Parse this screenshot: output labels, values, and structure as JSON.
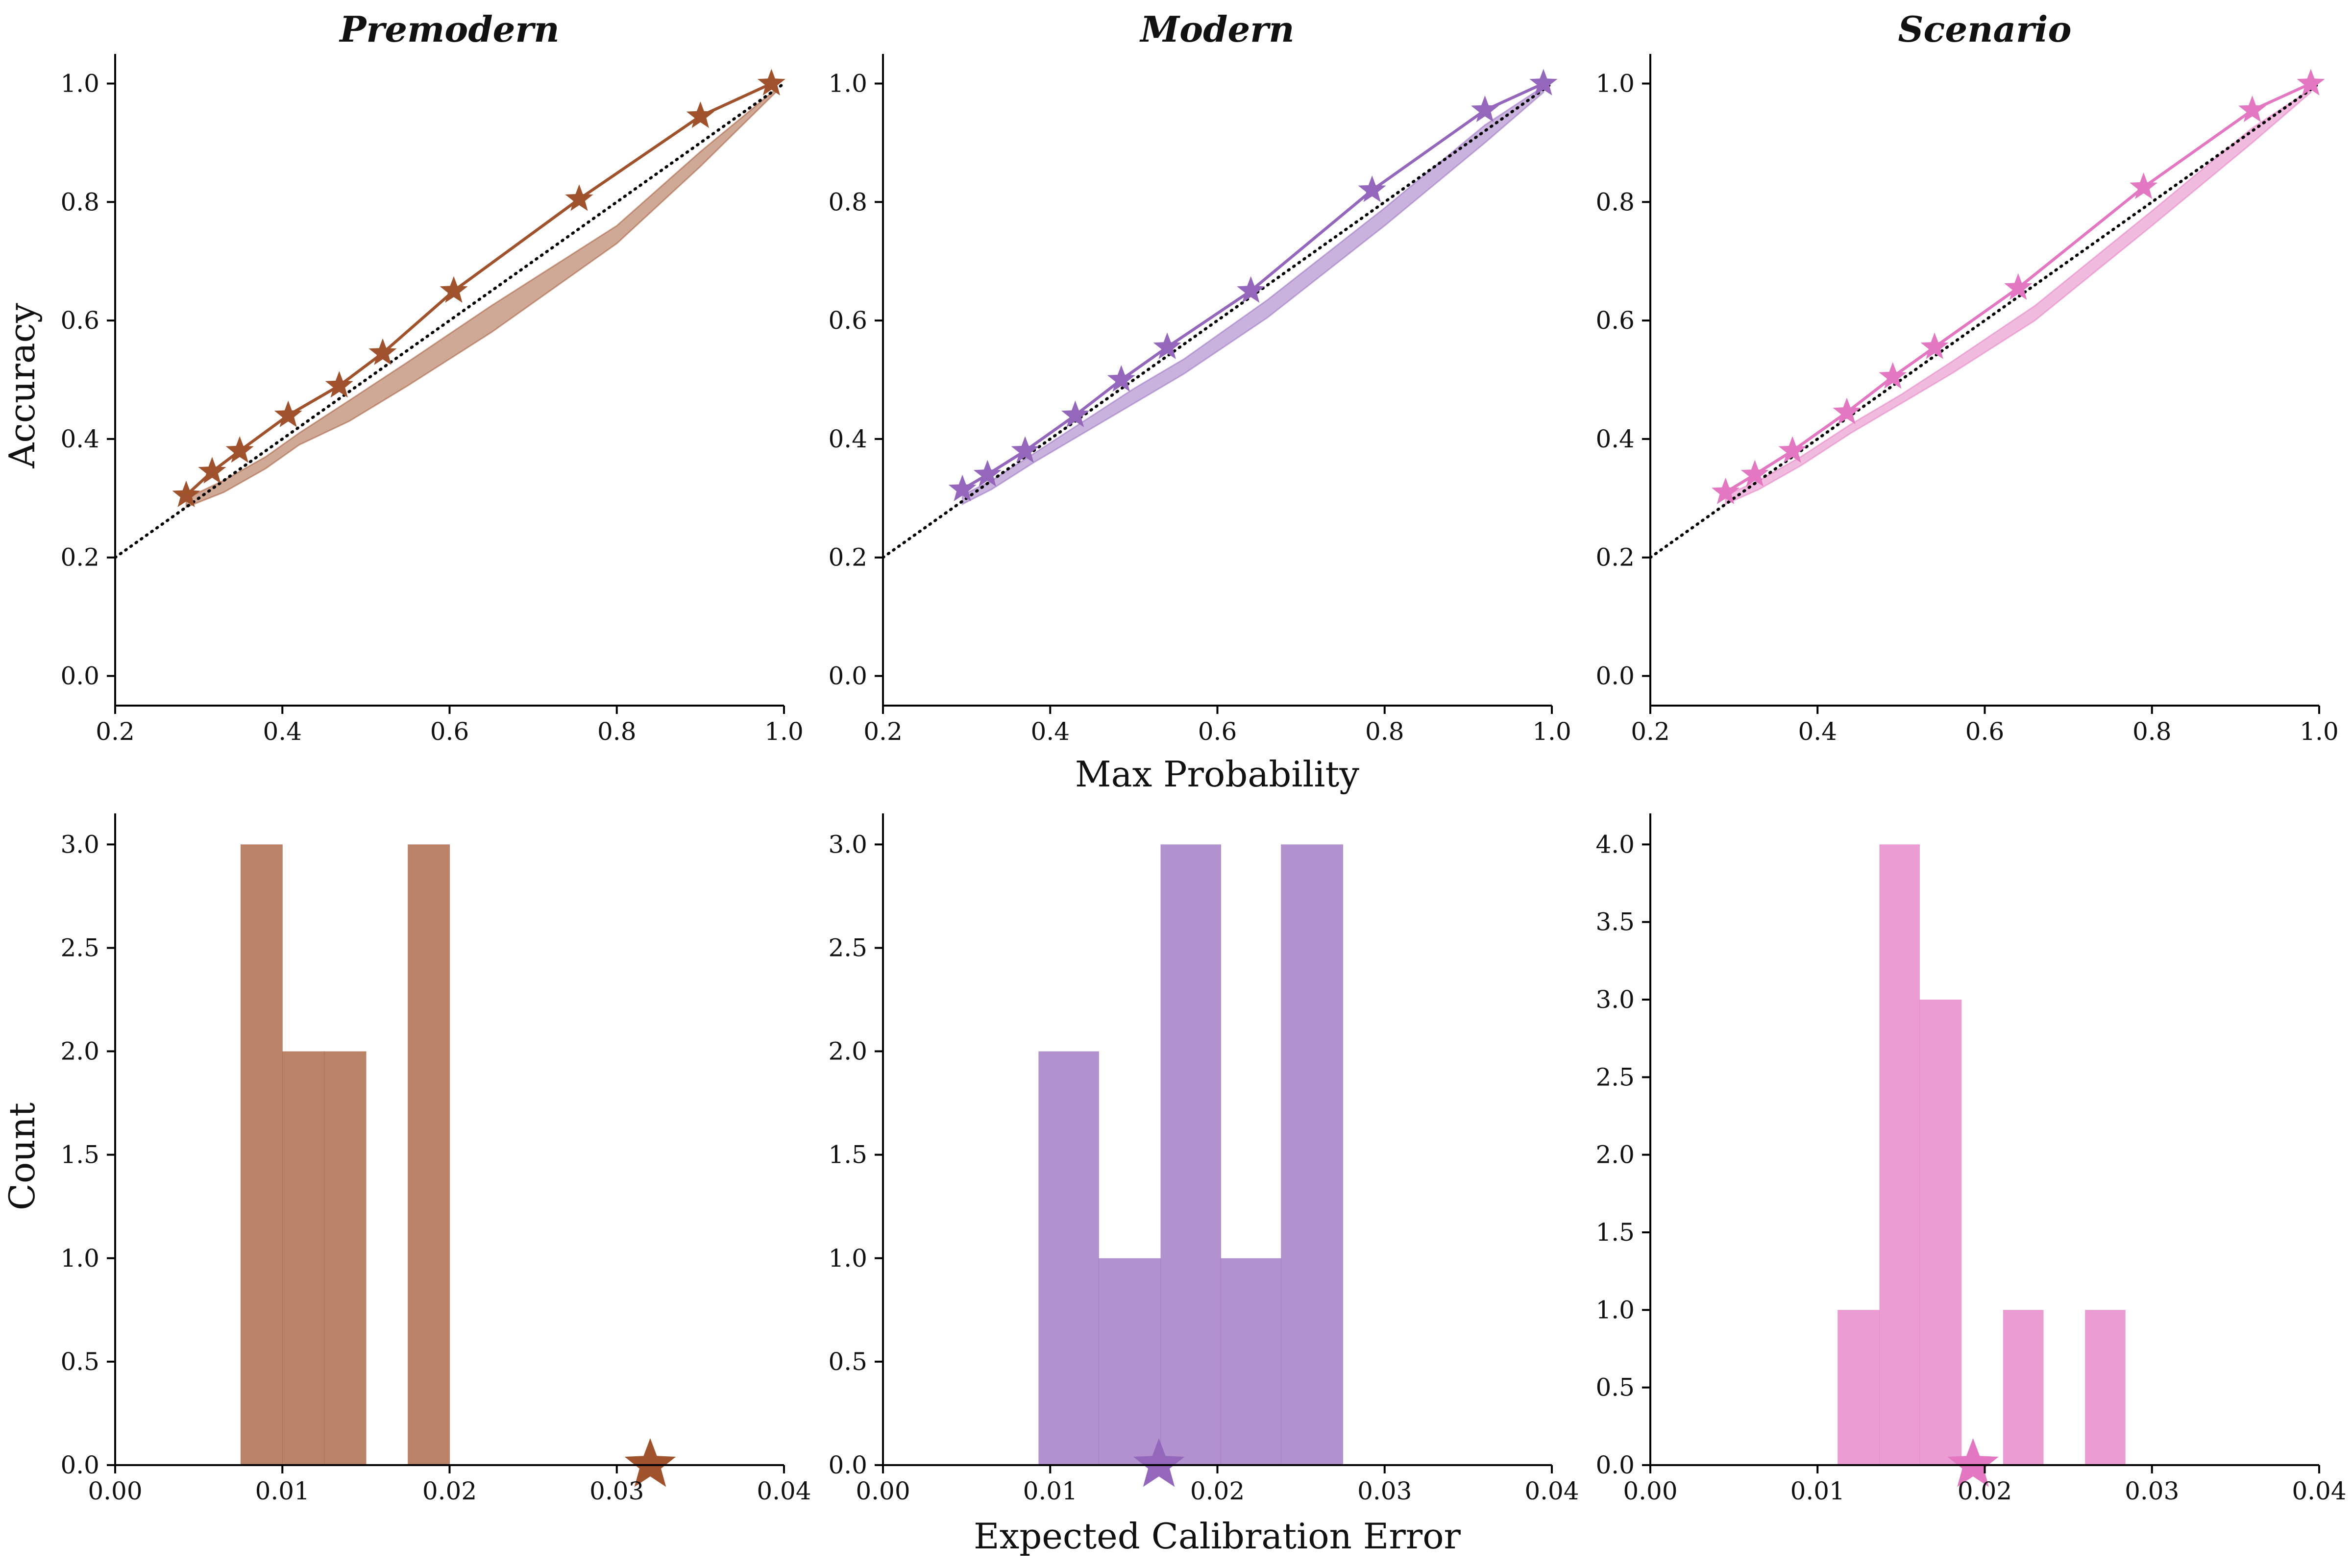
{
  "figure": {
    "ylabel_top": "Accuracy",
    "xlabel_top": "Max Probability",
    "ylabel_bottom": "Count",
    "xlabel_bottom": "Expected Calibration Error"
  },
  "chart_data": [
    {
      "panel": "top-left",
      "type": "line",
      "title": "Premodern",
      "color": "#a0522d",
      "xlim": [
        0.2,
        1.0
      ],
      "ylim": [
        -0.05,
        1.05
      ],
      "xticks": [
        "0.2",
        "0.4",
        "0.6",
        "0.8",
        "1.0"
      ],
      "yticks": [
        "0.0",
        "0.2",
        "0.4",
        "0.6",
        "0.8",
        "1.0"
      ],
      "grid": false,
      "diagonal": true,
      "series": [
        {
          "marker": "star",
          "x": [
            0.285,
            0.316,
            0.349,
            0.407,
            0.468,
            0.52,
            0.605,
            0.755,
            0.9,
            0.985
          ],
          "y": [
            0.305,
            0.345,
            0.38,
            0.44,
            0.49,
            0.545,
            0.65,
            0.805,
            0.945,
            1.0
          ]
        }
      ],
      "band": {
        "x": [
          0.285,
          0.33,
          0.38,
          0.42,
          0.48,
          0.55,
          0.65,
          0.8,
          0.9,
          0.99
        ],
        "lower": [
          0.285,
          0.31,
          0.35,
          0.39,
          0.43,
          0.49,
          0.58,
          0.73,
          0.86,
          0.985
        ],
        "upper": [
          0.3,
          0.33,
          0.37,
          0.41,
          0.465,
          0.53,
          0.625,
          0.76,
          0.885,
          0.99
        ]
      }
    },
    {
      "panel": "top-middle",
      "type": "line",
      "title": "Modern",
      "color": "#9467bd",
      "xlim": [
        0.2,
        1.0
      ],
      "ylim": [
        -0.05,
        1.05
      ],
      "xticks": [
        "0.2",
        "0.4",
        "0.6",
        "0.8",
        "1.0"
      ],
      "yticks": [
        "0.0",
        "0.2",
        "0.4",
        "0.6",
        "0.8",
        "1.0"
      ],
      "grid": false,
      "diagonal": true,
      "series": [
        {
          "marker": "star",
          "x": [
            0.295,
            0.325,
            0.37,
            0.43,
            0.485,
            0.54,
            0.64,
            0.785,
            0.92,
            0.99
          ],
          "y": [
            0.315,
            0.34,
            0.38,
            0.44,
            0.5,
            0.555,
            0.65,
            0.82,
            0.955,
            1.0
          ]
        }
      ],
      "band": {
        "x": [
          0.295,
          0.33,
          0.38,
          0.44,
          0.5,
          0.56,
          0.66,
          0.8,
          0.92,
          0.99
        ],
        "lower": [
          0.29,
          0.315,
          0.36,
          0.41,
          0.46,
          0.51,
          0.605,
          0.76,
          0.9,
          0.985
        ],
        "upper": [
          0.305,
          0.33,
          0.375,
          0.43,
          0.485,
          0.535,
          0.635,
          0.79,
          0.93,
          0.995
        ]
      }
    },
    {
      "panel": "top-right",
      "type": "line",
      "title": "Scenario",
      "color": "#e377c2",
      "xlim": [
        0.2,
        1.0
      ],
      "ylim": [
        -0.05,
        1.05
      ],
      "xticks": [
        "0.2",
        "0.4",
        "0.6",
        "0.8",
        "1.0"
      ],
      "yticks": [
        "0.0",
        "0.2",
        "0.4",
        "0.6",
        "0.8",
        "1.0"
      ],
      "grid": false,
      "diagonal": true,
      "series": [
        {
          "marker": "star",
          "x": [
            0.29,
            0.325,
            0.37,
            0.435,
            0.49,
            0.54,
            0.64,
            0.79,
            0.92,
            0.99
          ],
          "y": [
            0.31,
            0.34,
            0.38,
            0.445,
            0.505,
            0.555,
            0.655,
            0.825,
            0.955,
            1.0
          ]
        }
      ],
      "band": {
        "x": [
          0.29,
          0.33,
          0.38,
          0.44,
          0.5,
          0.56,
          0.66,
          0.8,
          0.92,
          0.99
        ],
        "lower": [
          0.29,
          0.315,
          0.355,
          0.41,
          0.46,
          0.51,
          0.6,
          0.76,
          0.9,
          0.985
        ],
        "upper": [
          0.305,
          0.33,
          0.37,
          0.425,
          0.475,
          0.53,
          0.625,
          0.785,
          0.925,
          0.99
        ]
      }
    },
    {
      "panel": "bottom-left",
      "type": "bar",
      "subtype": "histogram",
      "color": "#a0522d",
      "xlim": [
        0.0,
        0.04
      ],
      "ylim": [
        0,
        3.15
      ],
      "xticks": [
        "0.00",
        "0.01",
        "0.02",
        "0.03",
        "0.04"
      ],
      "yticks": [
        "0.0",
        "0.5",
        "1.0",
        "1.5",
        "2.0",
        "2.5",
        "3.0"
      ],
      "grid": false,
      "bin_edges": [
        0.0075,
        0.01,
        0.0125,
        0.015,
        0.0175,
        0.02
      ],
      "counts": [
        3,
        2,
        2,
        0,
        3
      ],
      "marker": {
        "symbol": "star",
        "x": 0.032,
        "y": 0
      }
    },
    {
      "panel": "bottom-middle",
      "type": "bar",
      "subtype": "histogram",
      "color": "#9467bd",
      "xlim": [
        0.0,
        0.04
      ],
      "ylim": [
        0,
        3.15
      ],
      "xticks": [
        "0.00",
        "0.01",
        "0.02",
        "0.03",
        "0.04"
      ],
      "yticks": [
        "0.0",
        "0.5",
        "1.0",
        "1.5",
        "2.0",
        "2.5",
        "3.0"
      ],
      "grid": false,
      "bin_edges": [
        0.0093,
        0.0129,
        0.0166,
        0.0202,
        0.0238,
        0.0275
      ],
      "counts": [
        2,
        1,
        3,
        1,
        3
      ],
      "marker": {
        "symbol": "star",
        "x": 0.0165,
        "y": 0
      }
    },
    {
      "panel": "bottom-right",
      "type": "bar",
      "subtype": "histogram",
      "color": "#e377c2",
      "xlim": [
        0.0,
        0.04
      ],
      "ylim": [
        0,
        4.2
      ],
      "xticks": [
        "0.00",
        "0.01",
        "0.02",
        "0.03",
        "0.04"
      ],
      "yticks": [
        "0.0",
        "0.5",
        "1.0",
        "1.5",
        "2.0",
        "2.5",
        "3.0",
        "3.5",
        "4.0"
      ],
      "grid": false,
      "bin_edges": [
        0.0112,
        0.0137,
        0.0161,
        0.0186,
        0.0211,
        0.0235,
        0.026,
        0.0284
      ],
      "counts": [
        1,
        4,
        3,
        0,
        1,
        0,
        1
      ],
      "marker": {
        "symbol": "star",
        "x": 0.0193,
        "y": 0
      }
    }
  ]
}
